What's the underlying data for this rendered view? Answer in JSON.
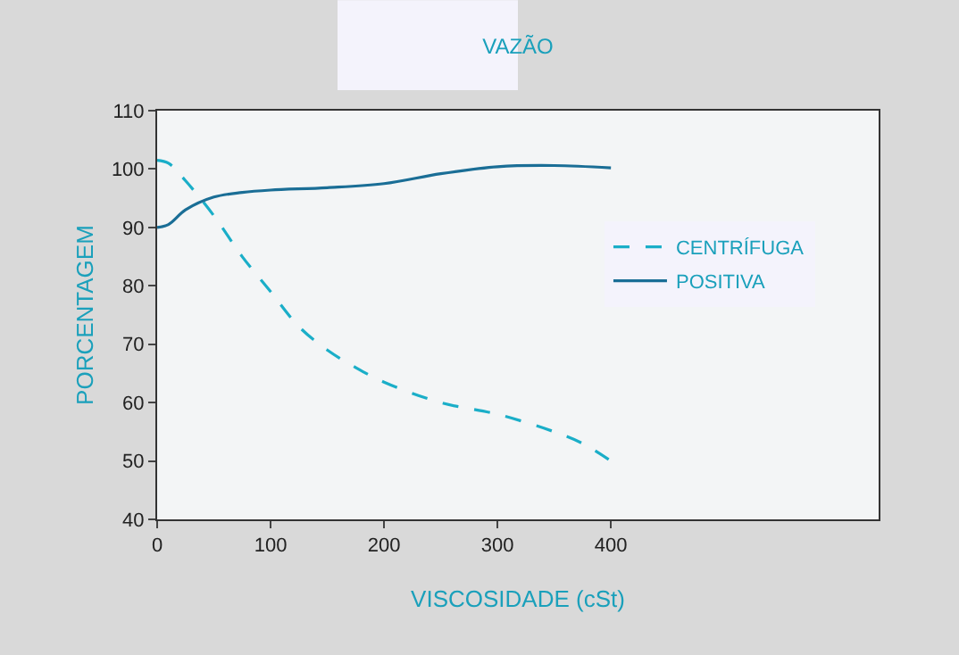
{
  "chart_data": {
    "type": "line",
    "title": "VAZÃO",
    "xlabel": "VISCOSIDADE (cSt)",
    "ylabel": "PORCENTAGEM",
    "xlim": [
      0,
      636
    ],
    "xticks": [
      0,
      100,
      200,
      300,
      400
    ],
    "ylim": [
      40,
      110
    ],
    "yticks": [
      40,
      50,
      60,
      70,
      80,
      90,
      100,
      110
    ],
    "grid": false,
    "legend": "right",
    "marker": "none",
    "series": [
      {
        "name": "CENTRÍFUGA",
        "color": "#1aaec8",
        "line_style": "dashed",
        "x": [
          0,
          10,
          25,
          50,
          75,
          100,
          125,
          150,
          175,
          200,
          250,
          300,
          350,
          375,
          400
        ],
        "values": [
          101.5,
          101,
          98,
          92,
          85,
          79,
          73,
          69,
          66,
          63.5,
          60,
          58,
          55,
          53,
          50
        ]
      },
      {
        "name": "POSITIVA",
        "color": "#1a6e96",
        "line_style": "solid",
        "x": [
          0,
          10,
          25,
          50,
          75,
          100,
          150,
          200,
          250,
          300,
          350,
          400
        ],
        "values": [
          90,
          90.5,
          93,
          95.2,
          96,
          96.4,
          96.8,
          97.5,
          99.2,
          100.4,
          100.6,
          100.2
        ]
      }
    ]
  }
}
